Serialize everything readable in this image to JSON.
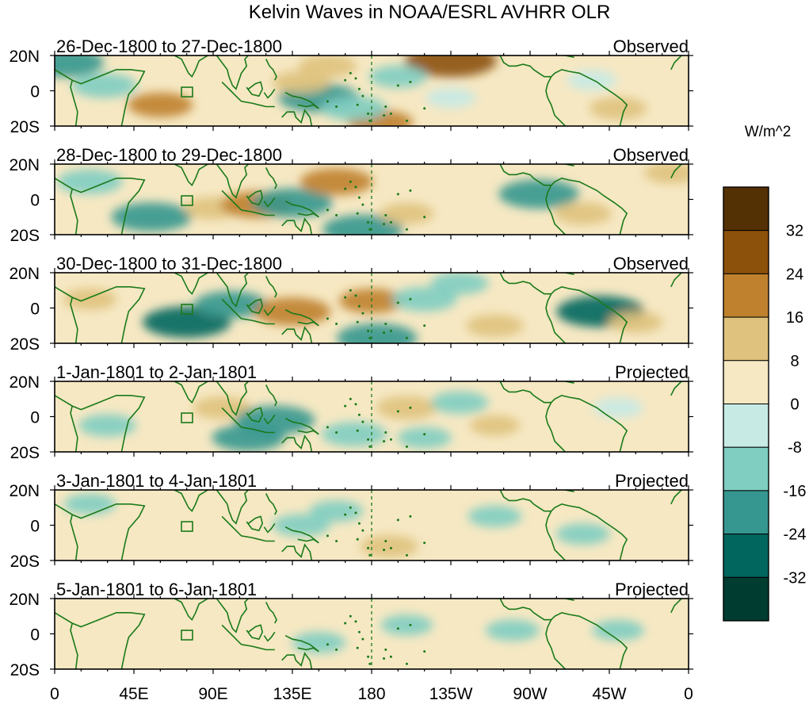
{
  "chart_data": {
    "type": "heatmap",
    "title": "Kelvin Waves in NOAA/ESRL AVHRR OLR",
    "units": "W/m^2",
    "x_ticks": [
      "0",
      "45E",
      "90E",
      "135E",
      "180",
      "135W",
      "90W",
      "45W",
      "0"
    ],
    "x_tick_values": [
      0,
      45,
      90,
      135,
      180,
      225,
      270,
      315,
      360
    ],
    "y_ticks": [
      "20N",
      "0",
      "20S"
    ],
    "y_tick_values": [
      20,
      0,
      -20
    ],
    "xlim": [
      0,
      360
    ],
    "ylim": [
      -20,
      20
    ],
    "contour_levels": [
      -32,
      -24,
      -16,
      -8,
      0,
      8,
      16,
      24,
      32
    ],
    "colorbar_labels": [
      "32",
      "24",
      "16",
      "8",
      "0",
      "-8",
      "-16",
      "-24",
      "-32"
    ],
    "colorbar_colors": [
      "#543005",
      "#8c510a",
      "#bf812d",
      "#dfc27d",
      "#f6e8c3",
      "#c7eae5",
      "#80cdc1",
      "#35978f",
      "#01665e",
      "#003c30"
    ],
    "reference_line_lon": 180,
    "panels": [
      {
        "date_range": "26-Dec-1800 to 27-Dec-1800",
        "type": "Observed",
        "features": [
          {
            "lon": 60,
            "lat": -8,
            "value": 16
          },
          {
            "lon": 28,
            "lat": 3,
            "value": -16
          },
          {
            "lon": 5,
            "lat": 16,
            "value": -24
          },
          {
            "lon": 150,
            "lat": -4,
            "value": -24
          },
          {
            "lon": 140,
            "lat": 5,
            "value": 12
          },
          {
            "lon": 155,
            "lat": 14,
            "value": 12
          },
          {
            "lon": 185,
            "lat": -18,
            "value": 16
          },
          {
            "lon": 225,
            "lat": 17,
            "value": 30
          },
          {
            "lon": 170,
            "lat": -10,
            "value": -16
          },
          {
            "lon": 225,
            "lat": -4,
            "value": -8
          },
          {
            "lon": 305,
            "lat": 6,
            "value": -8
          },
          {
            "lon": 320,
            "lat": -10,
            "value": 12
          },
          {
            "lon": 195,
            "lat": 8,
            "value": -12
          }
        ]
      },
      {
        "date_range": "28-Dec-1800 to 29-Dec-1800",
        "type": "Observed",
        "features": [
          {
            "lon": 20,
            "lat": 10,
            "value": -16
          },
          {
            "lon": 55,
            "lat": -10,
            "value": -24
          },
          {
            "lon": 90,
            "lat": -5,
            "value": 12
          },
          {
            "lon": 115,
            "lat": -3,
            "value": 20
          },
          {
            "lon": 135,
            "lat": -2,
            "value": -24
          },
          {
            "lon": 160,
            "lat": 10,
            "value": 20
          },
          {
            "lon": 175,
            "lat": -17,
            "value": -24
          },
          {
            "lon": 200,
            "lat": -8,
            "value": 10
          },
          {
            "lon": 275,
            "lat": 3,
            "value": -24
          },
          {
            "lon": 300,
            "lat": -8,
            "value": 12
          },
          {
            "lon": 350,
            "lat": 15,
            "value": 10
          }
        ]
      },
      {
        "date_range": "30-Dec-1800 to 31-Dec-1800",
        "type": "Observed",
        "features": [
          {
            "lon": 75,
            "lat": -8,
            "value": -28
          },
          {
            "lon": 100,
            "lat": 2,
            "value": -20
          },
          {
            "lon": 135,
            "lat": -2,
            "value": 22
          },
          {
            "lon": 180,
            "lat": 4,
            "value": 16
          },
          {
            "lon": 183,
            "lat": -17,
            "value": -24
          },
          {
            "lon": 210,
            "lat": 5,
            "value": -16
          },
          {
            "lon": 250,
            "lat": -10,
            "value": 12
          },
          {
            "lon": 310,
            "lat": -2,
            "value": -28
          },
          {
            "lon": 330,
            "lat": -8,
            "value": 10
          },
          {
            "lon": 20,
            "lat": 5,
            "value": 10
          },
          {
            "lon": 230,
            "lat": 14,
            "value": -12
          }
        ]
      },
      {
        "date_range": "1-Jan-1801 to 2-Jan-1801",
        "type": "Projected",
        "features": [
          {
            "lon": 95,
            "lat": 5,
            "value": 12
          },
          {
            "lon": 125,
            "lat": -2,
            "value": -24
          },
          {
            "lon": 110,
            "lat": -12,
            "value": -20
          },
          {
            "lon": 200,
            "lat": 5,
            "value": 14
          },
          {
            "lon": 210,
            "lat": -12,
            "value": -10
          },
          {
            "lon": 230,
            "lat": 8,
            "value": -12
          },
          {
            "lon": 250,
            "lat": -5,
            "value": 8
          },
          {
            "lon": 30,
            "lat": -5,
            "value": -12
          },
          {
            "lon": 170,
            "lat": -10,
            "value": -16
          },
          {
            "lon": 320,
            "lat": 5,
            "value": -8
          }
        ]
      },
      {
        "date_range": "3-Jan-1801 to 4-Jan-1801",
        "type": "Projected",
        "features": [
          {
            "lon": 140,
            "lat": 0,
            "value": -12
          },
          {
            "lon": 160,
            "lat": 8,
            "value": -10
          },
          {
            "lon": 190,
            "lat": -12,
            "value": 12
          },
          {
            "lon": 250,
            "lat": 5,
            "value": -10
          },
          {
            "lon": 300,
            "lat": -5,
            "value": -10
          },
          {
            "lon": 60,
            "lat": 5,
            "value": 6
          },
          {
            "lon": 20,
            "lat": 12,
            "value": -9
          }
        ]
      },
      {
        "date_range": "5-Jan-1801 to 6-Jan-1801",
        "type": "Projected",
        "features": [
          {
            "lon": 150,
            "lat": -5,
            "value": -10
          },
          {
            "lon": 200,
            "lat": 5,
            "value": -9
          },
          {
            "lon": 260,
            "lat": 2,
            "value": -10
          },
          {
            "lon": 320,
            "lat": 2,
            "value": -9
          },
          {
            "lon": 60,
            "lat": 5,
            "value": 6
          },
          {
            "lon": 110,
            "lat": 5,
            "value": 6
          },
          {
            "lon": 235,
            "lat": 15,
            "value": 5
          }
        ]
      }
    ]
  }
}
